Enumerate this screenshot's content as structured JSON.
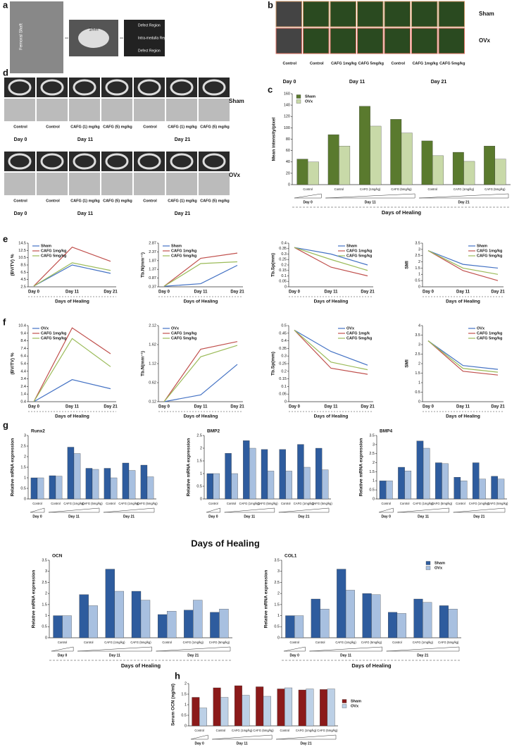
{
  "figure": {
    "letters": [
      "a",
      "b",
      "c",
      "d",
      "e",
      "f",
      "g",
      "h"
    ],
    "a_labels": [
      "Femoral Shaft",
      "1mm",
      "Defect Region",
      "Intra-medulla Region",
      "Defect Region"
    ],
    "b": {
      "rows": [
        "Sham",
        "OVx"
      ],
      "columns": [
        "Control",
        "Control",
        "CAFG 1mg/kg",
        "CAFG 5mg/kg",
        "Control",
        "CAFG 1mg/kg",
        "CAFG 5mg/kg"
      ],
      "days": [
        "Day 0",
        "Day 11",
        "Day 21"
      ]
    },
    "d": {
      "rows": [
        "Sham",
        "OVx"
      ],
      "columns": [
        "Control",
        "Control",
        "CAFG (1) mg/kg",
        "CAFG (5) mg/kg",
        "Control",
        "CAFG (1) mg/kg",
        "CAFG (5) mg/kg"
      ],
      "days": [
        "Day 0",
        "Day 11",
        "Day 21"
      ]
    },
    "big_xlabel": "Days of Healing"
  },
  "chart_data": [
    {
      "type": "bar",
      "ylabel": "Mean intensity/pixel",
      "xlabel": "Days of Healing",
      "categories": [
        "Control",
        "Control",
        "CAFG (1mg/kg)",
        "CAFG (5mg/kg)",
        "Control",
        "CAFG (1mg/kg)",
        "CAFG (5mg/kg)"
      ],
      "group_labels": [
        "Day 0",
        "Day 11",
        "Day 21"
      ],
      "series": [
        {
          "name": "Sham",
          "color": "#5a7a2e",
          "values": [
            45,
            88,
            138,
            115,
            77,
            57,
            68
          ]
        },
        {
          "name": "OVx",
          "color": "#c8d9a8",
          "values": [
            40,
            68,
            103,
            91,
            51,
            41,
            45
          ]
        }
      ],
      "ylim": [
        0,
        160
      ],
      "yticks": [
        0,
        20,
        40,
        60,
        80,
        100,
        120,
        140,
        160
      ],
      "legend": "upper left"
    },
    {
      "type": "line",
      "ylabel": "(BV/TV) %",
      "xlabel": "Days of Healing",
      "categories": [
        "Day 0",
        "Day 11",
        "Day 21"
      ],
      "series": [
        {
          "name": "Sham",
          "color": "#4472c4",
          "values": [
            2.7,
            8.5,
            6.2
          ]
        },
        {
          "name": "CAFG 1mg/kg",
          "color": "#c0504d",
          "values": [
            2.7,
            13.4,
            9.5
          ]
        },
        {
          "name": "CAFG 5mg/kg",
          "color": "#9bbb59",
          "values": [
            2.7,
            9.1,
            7.0
          ]
        }
      ],
      "ylim": [
        2.5,
        14.5
      ],
      "yticks": [
        2.5,
        4.5,
        6.5,
        8.5,
        10.5,
        12.5,
        14.5
      ],
      "legend": "upper left"
    },
    {
      "type": "line",
      "ylabel": "Tb.N(mm⁻¹)",
      "xlabel": "Days of Healing",
      "categories": [
        "Day 0",
        "Day 11",
        "Day 21"
      ],
      "series": [
        {
          "name": "Sham",
          "color": "#4472c4",
          "values": [
            0.4,
            0.55,
            1.6
          ]
        },
        {
          "name": "CAFG 1mg/kg",
          "color": "#c0504d",
          "values": [
            0.4,
            2.0,
            2.3
          ]
        },
        {
          "name": "CAFG 5mg/kg",
          "color": "#9bbb59",
          "values": [
            0.4,
            1.7,
            1.8
          ]
        }
      ],
      "ylim": [
        0.37,
        2.87
      ],
      "yticks": [
        0.37,
        0.87,
        1.37,
        1.87,
        2.37,
        2.87
      ],
      "legend": "upper left"
    },
    {
      "type": "line",
      "ylabel": "Tb.Sp(mm)",
      "xlabel": "Days of Healing",
      "categories": [
        "Day 0",
        "Day 11",
        "Day 21"
      ],
      "series": [
        {
          "name": "Sham",
          "color": "#4472c4",
          "values": [
            0.36,
            0.3,
            0.2
          ]
        },
        {
          "name": "CAFG 1mg/kg",
          "color": "#c0504d",
          "values": [
            0.36,
            0.18,
            0.1
          ]
        },
        {
          "name": "CAFG 5mg/kg",
          "color": "#9bbb59",
          "values": [
            0.36,
            0.25,
            0.15
          ]
        }
      ],
      "ylim": [
        0,
        0.4
      ],
      "yticks": [
        0,
        0.05,
        0.1,
        0.15,
        0.2,
        0.25,
        0.3,
        0.35,
        0.4
      ],
      "legend": "upper right"
    },
    {
      "type": "line",
      "ylabel": "SMI",
      "xlabel": "Days of Healing",
      "categories": [
        "Day 0",
        "Day 11",
        "Day 21"
      ],
      "series": [
        {
          "name": "Sham",
          "color": "#4472c4",
          "values": [
            2.9,
            1.8,
            1.5
          ]
        },
        {
          "name": "CAFG 1mg/kg",
          "color": "#c0504d",
          "values": [
            2.9,
            1.3,
            0.5
          ]
        },
        {
          "name": "CAFG 5mg/kg",
          "color": "#9bbb59",
          "values": [
            2.9,
            1.5,
            1.0
          ]
        }
      ],
      "ylim": [
        0,
        3.5
      ],
      "yticks": [
        0,
        0.5,
        1,
        1.5,
        2,
        2.5,
        3,
        3.5
      ],
      "legend": "upper right"
    },
    {
      "type": "line",
      "ylabel": "(BV/TV) %",
      "xlabel": "Days of Healing",
      "categories": [
        "Day 0",
        "Day 11",
        "Day 21"
      ],
      "series": [
        {
          "name": "OVx",
          "color": "#4472c4",
          "values": [
            0.4,
            3.3,
            2.1
          ]
        },
        {
          "name": "CAFG 1mg/kg",
          "color": "#c0504d",
          "values": [
            0.4,
            10.1,
            6.7
          ]
        },
        {
          "name": "CAFG 5mg/kg",
          "color": "#9bbb59",
          "values": [
            0.4,
            8.7,
            5.0
          ]
        }
      ],
      "ylim": [
        0.4,
        10.4
      ],
      "yticks": [
        0.4,
        1.4,
        2.4,
        3.4,
        4.4,
        5.4,
        6.4,
        7.4,
        8.4,
        9.4,
        10.4
      ],
      "legend": "upper left"
    },
    {
      "type": "line",
      "ylabel": "Tb.N(mm⁻¹)",
      "xlabel": "Days of Healing",
      "categories": [
        "Day 0",
        "Day 11",
        "Day 21"
      ],
      "series": [
        {
          "name": "OVx",
          "color": "#4472c4",
          "values": [
            0.12,
            0.3,
            1.1
          ]
        },
        {
          "name": "CAFG 1mg/kg",
          "color": "#c0504d",
          "values": [
            0.12,
            1.5,
            1.7
          ]
        },
        {
          "name": "CAFG 5mg/kg",
          "color": "#9bbb59",
          "values": [
            0.12,
            1.3,
            1.6
          ]
        }
      ],
      "ylim": [
        0.12,
        2.12
      ],
      "yticks": [
        0.12,
        0.62,
        1.12,
        1.62,
        2.12
      ],
      "legend": "upper left"
    },
    {
      "type": "line",
      "ylabel": "Tb.Sp(mm)",
      "xlabel": "Days of Healing",
      "categories": [
        "Day 0",
        "Day 11",
        "Day 21"
      ],
      "series": [
        {
          "name": "OVx",
          "color": "#4472c4",
          "values": [
            0.47,
            0.33,
            0.24
          ]
        },
        {
          "name": "CAFG 1mg/k",
          "color": "#c0504d",
          "values": [
            0.47,
            0.22,
            0.18
          ]
        },
        {
          "name": "CAFG 5mg/kg",
          "color": "#9bbb59",
          "values": [
            0.47,
            0.26,
            0.21
          ]
        }
      ],
      "ylim": [
        0,
        0.5
      ],
      "yticks": [
        0,
        0.05,
        0.1,
        0.15,
        0.2,
        0.25,
        0.3,
        0.35,
        0.4,
        0.45,
        0.5
      ],
      "legend": "upper right"
    },
    {
      "type": "line",
      "ylabel": "SMI",
      "xlabel": "Days of Healing",
      "categories": [
        "Day 0",
        "Day 11",
        "Day 21"
      ],
      "series": [
        {
          "name": "OVx",
          "color": "#4472c4",
          "values": [
            3.2,
            1.9,
            1.7
          ]
        },
        {
          "name": "CAFG 1mg/kg",
          "color": "#c0504d",
          "values": [
            3.2,
            1.6,
            1.4
          ]
        },
        {
          "name": "CAFG 5mg/kg",
          "color": "#9bbb59",
          "values": [
            3.2,
            1.75,
            1.55
          ]
        }
      ],
      "ylim": [
        0,
        4
      ],
      "yticks": [
        0,
        0.5,
        1,
        1.5,
        2,
        2.5,
        3,
        3.5,
        4
      ],
      "legend": "upper right"
    },
    {
      "type": "bar",
      "title": "Runx2",
      "ylabel": "Relative mRNA expression",
      "categories": [
        "Control",
        "Control",
        "CAFG (1mg/kg)",
        "CAFG (5mg/kg)",
        "Control",
        "CAFG (1mg/kg)",
        "CAFG (5mg/kg)"
      ],
      "group_labels": [
        "Day 0",
        "Day 11",
        "Day 21"
      ],
      "series": [
        {
          "name": "Sham",
          "color": "#2e5c9e",
          "values": [
            1,
            1.1,
            2.45,
            1.45,
            1.45,
            1.7,
            1.6
          ]
        },
        {
          "name": "OVx",
          "color": "#a8c0e0",
          "values": [
            1,
            1.08,
            2.15,
            1.4,
            1.0,
            1.35,
            1.05
          ]
        }
      ],
      "ylim": [
        0,
        3
      ],
      "yticks": [
        0,
        0.5,
        1,
        1.5,
        2,
        2.5,
        3
      ]
    },
    {
      "type": "bar",
      "title": "BMP2",
      "ylabel": "Relative mRNA expression",
      "categories": [
        "Control",
        "Control",
        "CAFG (1mg/kg)",
        "CAFG (5mg/kg)",
        "Control",
        "CAFG (1mg/kg)",
        "CAFG (5mg/kg)"
      ],
      "group_labels": [
        "Day 0",
        "Day 11",
        "Day 21"
      ],
      "series": [
        {
          "name": "Sham",
          "color": "#2e5c9e",
          "values": [
            1,
            1.8,
            2.3,
            1.95,
            1.95,
            2.15,
            2.0
          ]
        },
        {
          "name": "OVx",
          "color": "#a8c0e0",
          "values": [
            1,
            1.0,
            2.0,
            1.1,
            1.1,
            1.25,
            1.15
          ]
        }
      ],
      "ylim": [
        0,
        2.5
      ],
      "yticks": [
        0,
        0.5,
        1,
        1.5,
        2,
        2.5
      ]
    },
    {
      "type": "bar",
      "title": "BMP4",
      "ylabel": "Relative mRNA expression",
      "categories": [
        "Control",
        "Control",
        "CAFG (1mg/kg)",
        "CAFG (5mg/kg)",
        "Control",
        "CAFG (1mg/kg)",
        "CAFG (5mg/kg)"
      ],
      "group_labels": [
        "Day 0",
        "Day 11",
        "Day 21"
      ],
      "series": [
        {
          "name": "Sham",
          "color": "#2e5c9e",
          "values": [
            1,
            1.75,
            3.2,
            2.0,
            1.2,
            2.0,
            1.25
          ]
        },
        {
          "name": "OVx",
          "color": "#a8c0e0",
          "values": [
            1,
            1.55,
            2.8,
            1.95,
            1.0,
            1.1,
            1.1
          ]
        }
      ],
      "ylim": [
        0,
        3.5
      ],
      "yticks": [
        0,
        0.5,
        1,
        1.5,
        2,
        2.5,
        3,
        3.5
      ]
    },
    {
      "type": "bar",
      "title": "OCN",
      "ylabel": "Relative mRNA expression",
      "categories": [
        "Control",
        "Control",
        "CAFG (1mg/kg)",
        "CAFG (5mg/kg)",
        "Control",
        "CAFG (1mg/kg)",
        "CAFG (5mg/kg)"
      ],
      "group_labels": [
        "Day 0",
        "Day 11",
        "Day 21"
      ],
      "series": [
        {
          "name": "Sham",
          "color": "#2e5c9e",
          "values": [
            1,
            1.95,
            3.1,
            2.1,
            1.05,
            1.25,
            1.15
          ]
        },
        {
          "name": "OVx",
          "color": "#a8c0e0",
          "values": [
            1,
            1.45,
            2.1,
            1.7,
            1.2,
            1.7,
            1.3
          ]
        }
      ],
      "ylim": [
        0,
        3.5
      ],
      "yticks": [
        0,
        0.5,
        1,
        1.5,
        2,
        2.5,
        3,
        3.5
      ],
      "xlabel": "Days of Healing"
    },
    {
      "type": "bar",
      "title": "COL1",
      "ylabel": "Relative mRNA expression",
      "categories": [
        "Control",
        "Control",
        "CAFG (1mg/kg)",
        "CAFG (5mg/kg)",
        "Control",
        "CAFG (1mg/kg)",
        "CAFG (5mg/kg)"
      ],
      "group_labels": [
        "Day 0",
        "Day 11",
        "Day 21"
      ],
      "series": [
        {
          "name": "Sham",
          "color": "#2e5c9e",
          "values": [
            1,
            1.75,
            3.1,
            2.0,
            1.15,
            1.75,
            1.45
          ]
        },
        {
          "name": "OVx",
          "color": "#a8c0e0",
          "values": [
            1,
            1.3,
            2.15,
            1.95,
            1.1,
            1.6,
            1.3
          ]
        }
      ],
      "ylim": [
        0,
        3.5
      ],
      "yticks": [
        0,
        0.5,
        1,
        1.5,
        2,
        2.5,
        3,
        3.5
      ],
      "legend": "upper right",
      "xlabel": "Days of Healing"
    },
    {
      "type": "bar",
      "ylabel": "Serum OCN (ng/ml)",
      "xlabel": "Days of Healing",
      "categories": [
        "Control",
        "Control",
        "CAFG (1mg/kg)",
        "CAFG (5mg/kg)",
        "Control",
        "CAFG (1mg/kg)",
        "CAFG (5mg/kg)"
      ],
      "group_labels": [
        "Day 0",
        "Day 11",
        "Day 21"
      ],
      "series": [
        {
          "name": "Sham",
          "color": "#8b1a1a",
          "values": [
            1.35,
            1.8,
            1.9,
            1.85,
            1.75,
            1.7,
            1.72
          ]
        },
        {
          "name": "OVx",
          "color": "#bcd0e6",
          "values": [
            0.85,
            1.35,
            1.45,
            1.4,
            1.8,
            1.75,
            1.75
          ]
        }
      ],
      "ylim": [
        0,
        2
      ],
      "yticks": [
        0,
        0.5,
        1,
        1.5,
        2
      ],
      "legend": "right"
    }
  ]
}
